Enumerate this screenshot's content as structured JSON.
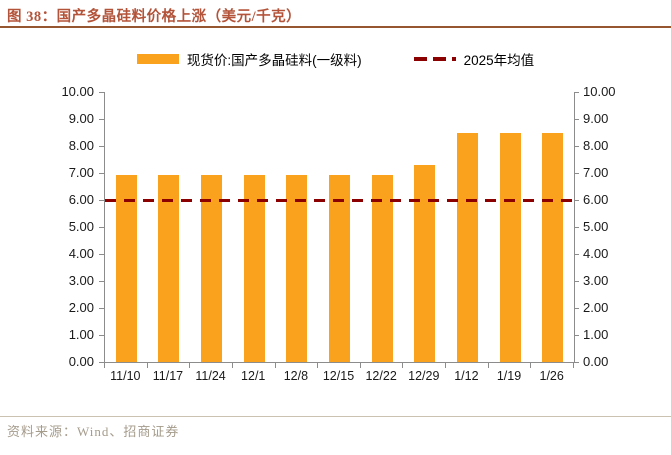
{
  "title": "图 38：国产多晶硅料价格上涨（美元/千克）",
  "legend": {
    "items": [
      {
        "label": "现货价:国产多晶硅料(一级料)",
        "swatch": "bar",
        "color": "#FAA21E"
      },
      {
        "label": "2025年均值",
        "swatch": "dashed-line",
        "color": "#8B0000"
      }
    ]
  },
  "source": "资料来源：Wind、招商证券",
  "colors": {
    "bar": "#FAA21E",
    "mean_line": "#8B0000",
    "title_text": "#B3543A",
    "title_rule": "#96562F",
    "axis": "#8C8C8C",
    "tick_label": "#1A1A1A",
    "legend_text": "#000000",
    "source_text": "#A49B8B",
    "bottom_rule": "#CCC2B2"
  },
  "chart_data": {
    "type": "bar",
    "title": "国产多晶硅料价格上涨（美元/千克）",
    "unit": "美元/千克",
    "categories": [
      "11/10",
      "11/17",
      "11/24",
      "12/1",
      "12/8",
      "12/15",
      "12/22",
      "12/29",
      "1/12",
      "1/19",
      "1/26"
    ],
    "series": [
      {
        "name": "现货价:国产多晶硅料(一级料)",
        "type": "bar",
        "color": "#FAA21E",
        "values": [
          6.93,
          6.93,
          6.93,
          6.93,
          6.93,
          6.93,
          6.93,
          7.3,
          8.48,
          8.48,
          8.5
        ]
      },
      {
        "name": "2025年均值",
        "type": "dashed_line",
        "color": "#8B0000",
        "value": 5.97
      }
    ],
    "ylim": [
      0,
      10
    ],
    "ytick_step": 1.0,
    "ytick_labels": [
      "0.00",
      "1.00",
      "2.00",
      "3.00",
      "4.00",
      "5.00",
      "6.00",
      "7.00",
      "8.00",
      "9.00",
      "10.00"
    ],
    "axes": {
      "left": true,
      "right": true,
      "grid": false,
      "legend_position": "top-center"
    }
  }
}
